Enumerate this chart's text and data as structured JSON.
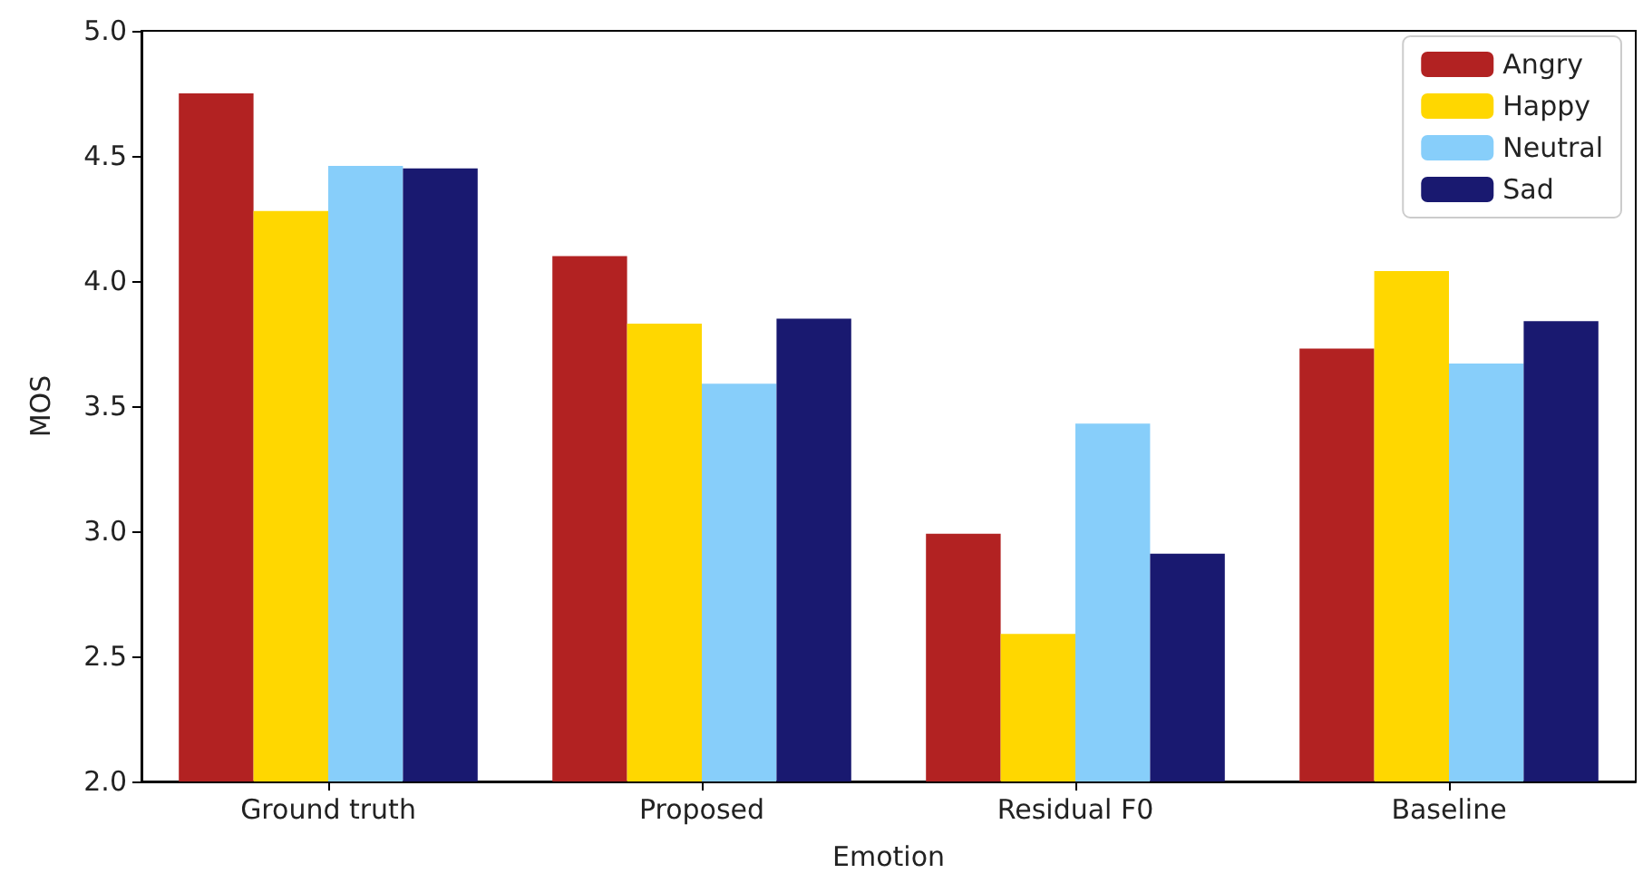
{
  "chart_data": {
    "type": "bar",
    "xlabel": "Emotion",
    "ylabel": "MOS",
    "categories": [
      "Ground truth",
      "Proposed",
      "Residual F0",
      "Baseline"
    ],
    "series": [
      {
        "name": "Angry",
        "color": "#b22222",
        "values": [
          4.75,
          4.1,
          2.99,
          3.73
        ]
      },
      {
        "name": "Happy",
        "color": "#ffd700",
        "values": [
          4.28,
          3.83,
          2.59,
          4.04
        ]
      },
      {
        "name": "Neutral",
        "color": "#87cefa",
        "values": [
          4.46,
          3.59,
          3.43,
          3.67
        ]
      },
      {
        "name": "Sad",
        "color": "#191970",
        "values": [
          4.45,
          3.85,
          2.91,
          3.84
        ]
      }
    ],
    "ylim": [
      2.0,
      5.0
    ],
    "yticks": [
      {
        "value": 2.0,
        "label": "2.0"
      },
      {
        "value": 2.5,
        "label": "2.5"
      },
      {
        "value": 3.0,
        "label": "3.0"
      },
      {
        "value": 3.5,
        "label": "3.5"
      },
      {
        "value": 4.0,
        "label": "4.0"
      },
      {
        "value": 4.5,
        "label": "4.5"
      },
      {
        "value": 5.0,
        "label": "5.0"
      }
    ],
    "grid": false,
    "legend": "top right"
  }
}
